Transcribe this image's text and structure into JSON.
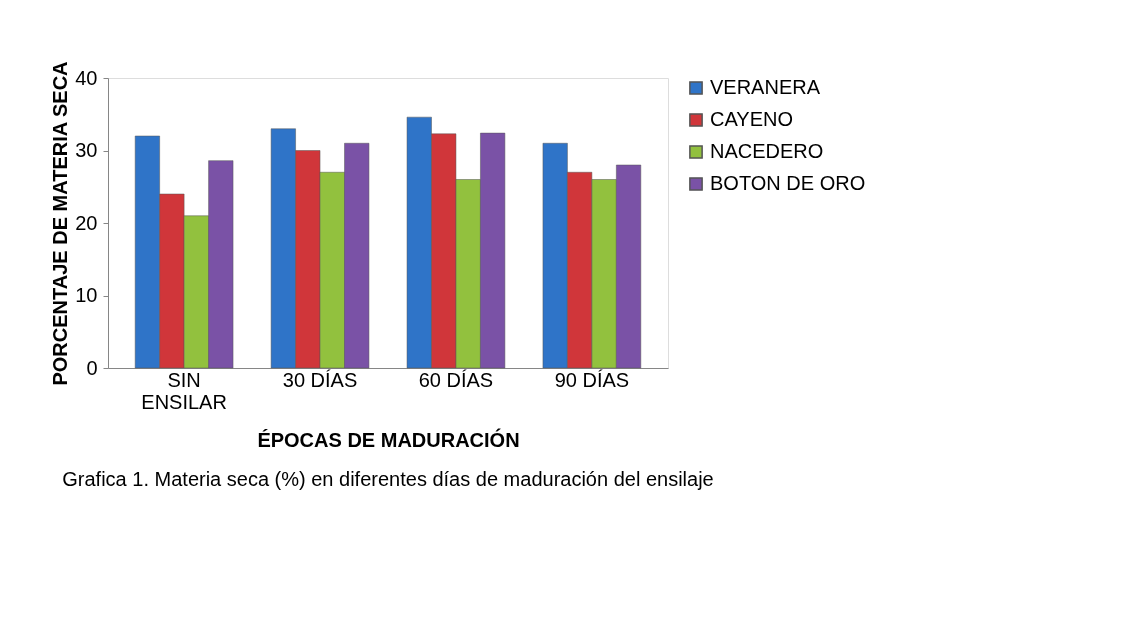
{
  "chart_data": {
    "type": "bar",
    "title": "Grafica 1. Materia seca (%) en diferentes días de maduración del ensilaje",
    "xlabel": "ÉPOCAS DE MADURACIÓN",
    "ylabel": "PORCENTAJE DE MATERIA SECA",
    "categories": [
      "SIN ENSILAR",
      "30 DÍAS",
      "60 DÍAS",
      "90 DÍAS"
    ],
    "series": [
      {
        "name": "VERANERA",
        "color": "#2f74c8",
        "values": [
          32,
          33,
          34.6,
          31
        ]
      },
      {
        "name": "CAYENO",
        "color": "#d0363a",
        "values": [
          24,
          30,
          32.3,
          27
        ]
      },
      {
        "name": "NACEDERO",
        "color": "#92c13e",
        "values": [
          21,
          27,
          26,
          26
        ]
      },
      {
        "name": "BOTON DE ORO",
        "color": "#7a52a6",
        "values": [
          28.6,
          31,
          32.4,
          28
        ]
      }
    ],
    "ylim": [
      0,
      40
    ],
    "yticks": [
      0,
      10,
      20,
      30,
      40
    ],
    "grid": false,
    "legend": "right"
  }
}
